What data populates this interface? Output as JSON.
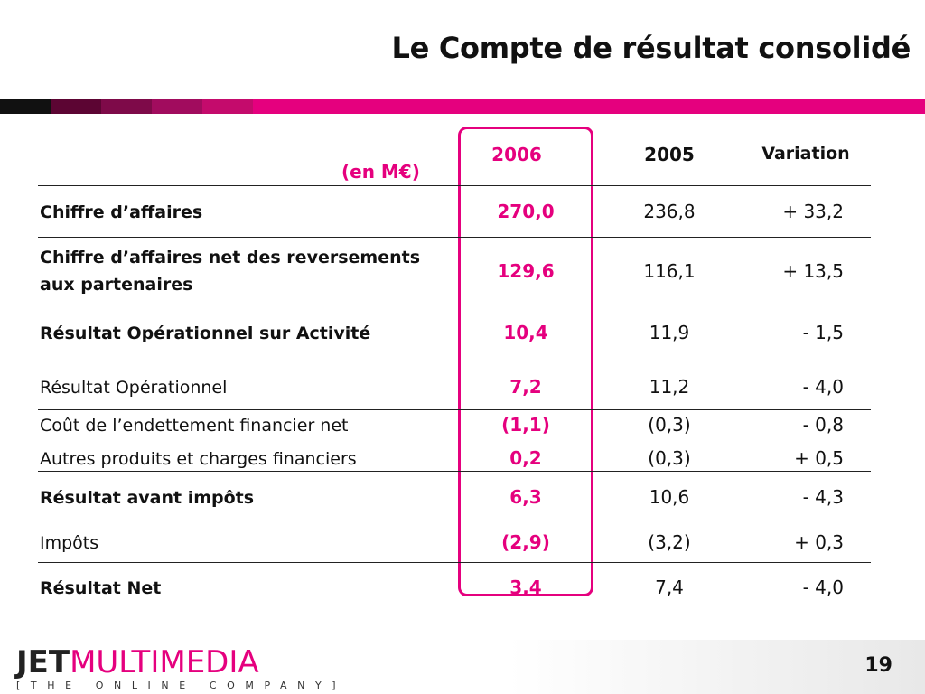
{
  "slide": {
    "title": "Le Compte de résultat consolidé",
    "unit_label": "(en M€)",
    "page_number": "19"
  },
  "colors": {
    "accent": "#e5007e",
    "text": "#111111"
  },
  "table": {
    "columns": [
      "2006",
      "2005",
      "Variation"
    ],
    "rows": [
      {
        "label": "Chiffre d’affaires",
        "bold": true,
        "v2006": "270,0",
        "v2005": "236,8",
        "variation": "+ 33,2"
      },
      {
        "label": "Chiffre d’affaires net des reversements aux partenaires",
        "bold": true,
        "v2006": "129,6",
        "v2005": "116,1",
        "variation": "+ 13,5"
      },
      {
        "label": "Résultat Opérationnel sur Activité",
        "bold": true,
        "v2006": "10,4",
        "v2005": "11,9",
        "variation": "- 1,5"
      },
      {
        "label": "Résultat Opérationnel",
        "bold": false,
        "v2006": "7,2",
        "v2005": "11,2",
        "variation": "- 4,0"
      },
      {
        "label": "Coût de l’endettement financier net",
        "bold": false,
        "v2006": "(1,1)",
        "v2005": "(0,3)",
        "variation": "- 0,8"
      },
      {
        "label": "Autres produits et charges financiers",
        "bold": false,
        "v2006": "0,2",
        "v2005": "(0,3)",
        "variation": "+ 0,5"
      },
      {
        "label": "Résultat avant impôts",
        "bold": true,
        "v2006": "6,3",
        "v2005": "10,6",
        "variation": "- 4,3"
      },
      {
        "label": "Impôts",
        "bold": false,
        "v2006": "(2,9)",
        "v2005": "(3,2)",
        "variation": "+ 0,3"
      },
      {
        "label": "Résultat Net",
        "bold": true,
        "v2006": "3,4",
        "v2005": "7,4",
        "variation": "- 4,0"
      }
    ]
  },
  "logo": {
    "brand_part1": "JET",
    "brand_part2": "MULTIMEDIA",
    "tagline": "[THE ONLINE COMPANY]"
  }
}
